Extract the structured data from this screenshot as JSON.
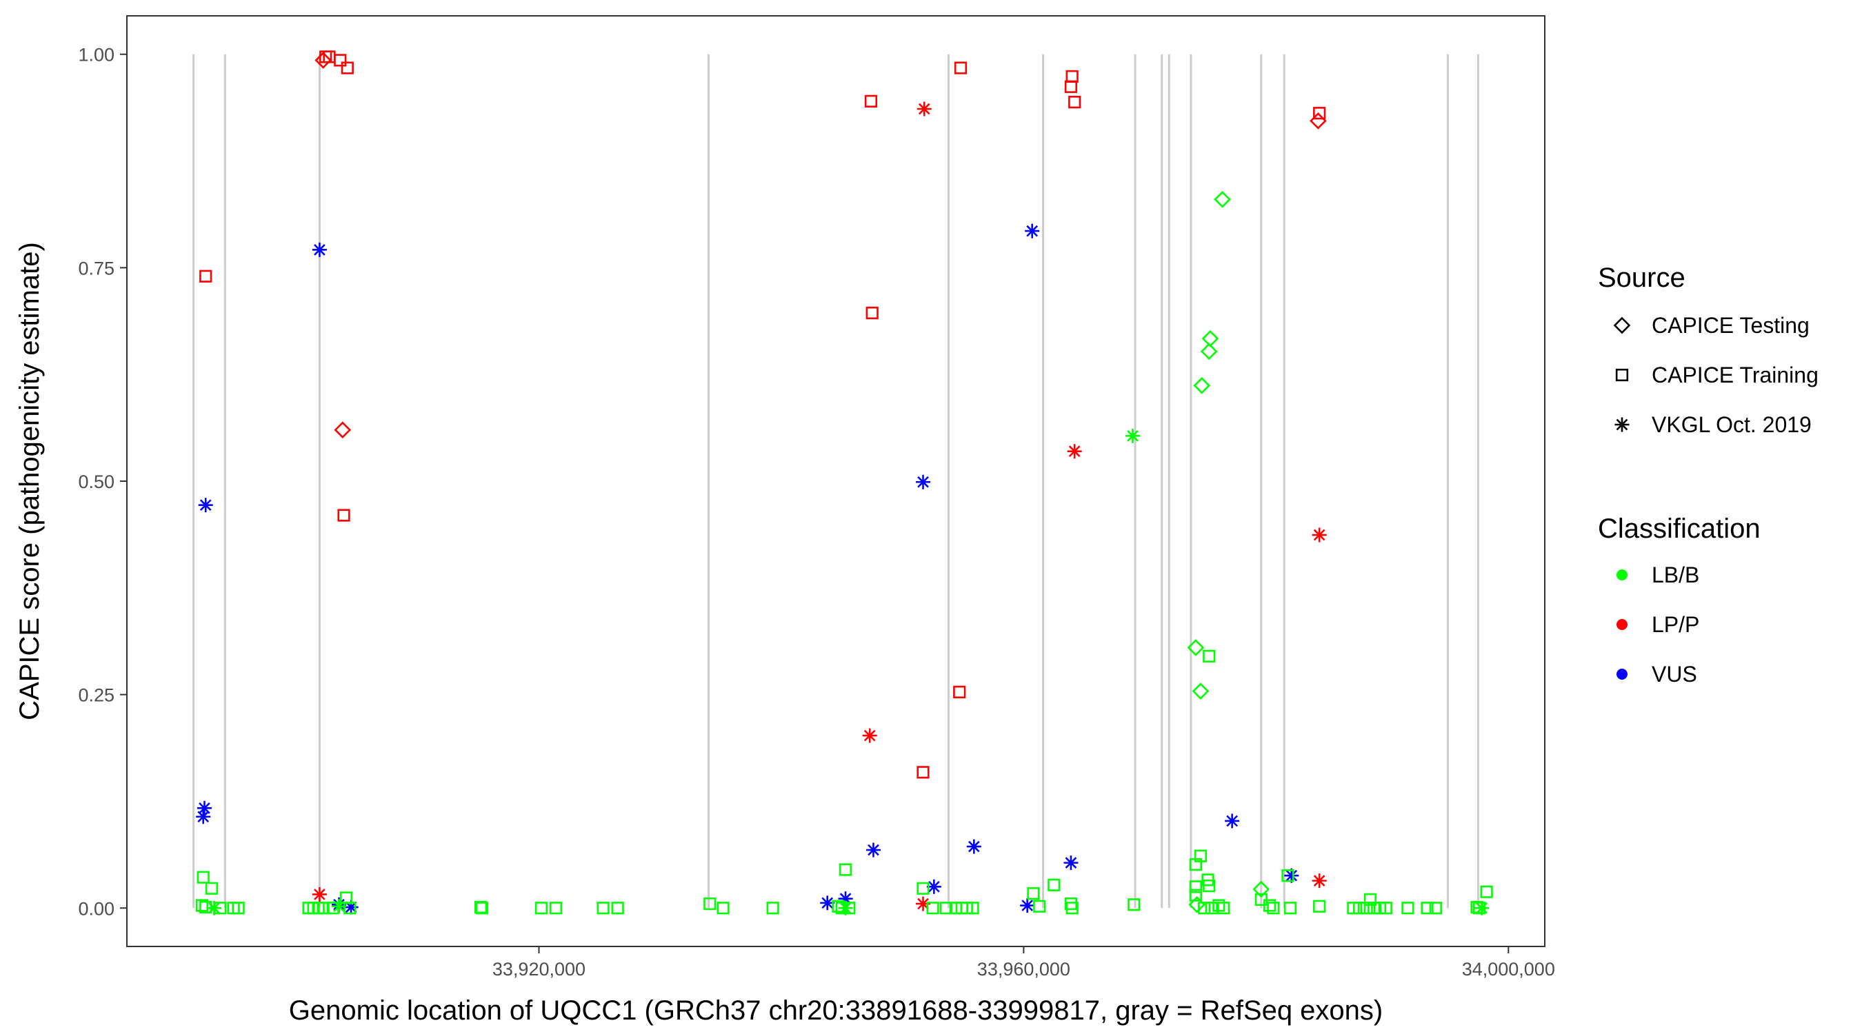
{
  "chart_data": {
    "type": "scatter",
    "xlabel": "Genomic location of UQCC1 (GRCh37 chr20:33891688-33999817, gray = RefSeq exons)",
    "ylabel": "CAPICE score (pathogenicity estimate)",
    "xlim": [
      33886000,
      34003000
    ],
    "ylim": [
      -0.045,
      1.045
    ],
    "x_ticks": [
      {
        "value": 33920000,
        "label": "33,920,000"
      },
      {
        "value": 33960000,
        "label": "33,960,000"
      },
      {
        "value": 34000000,
        "label": "34,000,000"
      }
    ],
    "y_ticks": [
      {
        "value": 0,
        "label": "0.00"
      },
      {
        "value": 0.25,
        "label": "0.25"
      },
      {
        "value": 0.5,
        "label": "0.50"
      },
      {
        "value": 0.75,
        "label": "0.75"
      },
      {
        "value": 1.0,
        "label": "1.00"
      }
    ],
    "grid": false,
    "exon_lines": [
      33891500,
      33894100,
      33901900,
      33934000,
      33953800,
      33961600,
      33969200,
      33971400,
      33972000,
      33973800,
      33979600,
      33981500,
      33995000,
      33997500
    ],
    "legend_placement": "right",
    "source_legend": {
      "title": "Source",
      "entries": [
        {
          "label": "CAPICE Testing",
          "shape": "diamond"
        },
        {
          "label": "CAPICE Training",
          "shape": "square"
        },
        {
          "label": "VKGL Oct. 2019",
          "shape": "asterisk"
        }
      ]
    },
    "class_legend": {
      "title": "Classification",
      "entries": [
        {
          "label": "LB/B",
          "color": "#00ff00"
        },
        {
          "label": "LP/P",
          "color": "#ff0000"
        },
        {
          "label": "VUS",
          "color": "#0000ff"
        }
      ]
    },
    "colors": {
      "LB/B": "#00ff00",
      "LP/P": "#ff0000",
      "VUS": "#0000ff"
    },
    "exon_color": "#cccccc",
    "points": [
      {
        "x": 33902400,
        "y": 0.997,
        "shape": "square",
        "cls": "LP/P"
      },
      {
        "x": 33902700,
        "y": 0.997,
        "shape": "square",
        "cls": "LP/P"
      },
      {
        "x": 33902200,
        "y": 0.993,
        "shape": "diamond",
        "cls": "LP/P"
      },
      {
        "x": 33903600,
        "y": 0.993,
        "shape": "square",
        "cls": "LP/P"
      },
      {
        "x": 33904200,
        "y": 0.984,
        "shape": "square",
        "cls": "LP/P"
      },
      {
        "x": 33892500,
        "y": 0.74,
        "shape": "square",
        "cls": "LP/P"
      },
      {
        "x": 33903800,
        "y": 0.56,
        "shape": "diamond",
        "cls": "LP/P"
      },
      {
        "x": 33903900,
        "y": 0.46,
        "shape": "square",
        "cls": "LP/P"
      },
      {
        "x": 33901900,
        "y": 0.016,
        "shape": "asterisk",
        "cls": "LP/P"
      },
      {
        "x": 33947400,
        "y": 0.945,
        "shape": "square",
        "cls": "LP/P"
      },
      {
        "x": 33947500,
        "y": 0.697,
        "shape": "square",
        "cls": "LP/P"
      },
      {
        "x": 33947300,
        "y": 0.202,
        "shape": "asterisk",
        "cls": "LP/P"
      },
      {
        "x": 33951800,
        "y": 0.936,
        "shape": "asterisk",
        "cls": "LP/P"
      },
      {
        "x": 33954800,
        "y": 0.984,
        "shape": "square",
        "cls": "LP/P"
      },
      {
        "x": 33954700,
        "y": 0.253,
        "shape": "square",
        "cls": "LP/P"
      },
      {
        "x": 33951700,
        "y": 0.159,
        "shape": "square",
        "cls": "LP/P"
      },
      {
        "x": 33951700,
        "y": 0.005,
        "shape": "asterisk",
        "cls": "LP/P"
      },
      {
        "x": 33964000,
        "y": 0.974,
        "shape": "square",
        "cls": "LP/P"
      },
      {
        "x": 33963900,
        "y": 0.962,
        "shape": "square",
        "cls": "LP/P"
      },
      {
        "x": 33964200,
        "y": 0.944,
        "shape": "square",
        "cls": "LP/P"
      },
      {
        "x": 33964200,
        "y": 0.535,
        "shape": "asterisk",
        "cls": "LP/P"
      },
      {
        "x": 33984400,
        "y": 0.931,
        "shape": "square",
        "cls": "LP/P"
      },
      {
        "x": 33984300,
        "y": 0.922,
        "shape": "diamond",
        "cls": "LP/P"
      },
      {
        "x": 33984400,
        "y": 0.437,
        "shape": "asterisk",
        "cls": "LP/P"
      },
      {
        "x": 33984400,
        "y": 0.032,
        "shape": "asterisk",
        "cls": "LP/P"
      },
      {
        "x": 33901900,
        "y": 0.771,
        "shape": "asterisk",
        "cls": "VUS"
      },
      {
        "x": 33892500,
        "y": 0.472,
        "shape": "asterisk",
        "cls": "VUS"
      },
      {
        "x": 33892400,
        "y": 0.117,
        "shape": "asterisk",
        "cls": "VUS"
      },
      {
        "x": 33892300,
        "y": 0.107,
        "shape": "asterisk",
        "cls": "VUS"
      },
      {
        "x": 33903500,
        "y": 0.004,
        "shape": "asterisk",
        "cls": "VUS"
      },
      {
        "x": 33904500,
        "y": 0.001,
        "shape": "asterisk",
        "cls": "VUS"
      },
      {
        "x": 33951700,
        "y": 0.499,
        "shape": "asterisk",
        "cls": "VUS"
      },
      {
        "x": 33947600,
        "y": 0.068,
        "shape": "asterisk",
        "cls": "VUS"
      },
      {
        "x": 33943800,
        "y": 0.006,
        "shape": "asterisk",
        "cls": "VUS"
      },
      {
        "x": 33945300,
        "y": 0.011,
        "shape": "asterisk",
        "cls": "VUS"
      },
      {
        "x": 33952600,
        "y": 0.025,
        "shape": "asterisk",
        "cls": "VUS"
      },
      {
        "x": 33955900,
        "y": 0.072,
        "shape": "asterisk",
        "cls": "VUS"
      },
      {
        "x": 33960700,
        "y": 0.793,
        "shape": "asterisk",
        "cls": "VUS"
      },
      {
        "x": 33963900,
        "y": 0.053,
        "shape": "asterisk",
        "cls": "VUS"
      },
      {
        "x": 33960300,
        "y": 0.003,
        "shape": "asterisk",
        "cls": "VUS"
      },
      {
        "x": 33977200,
        "y": 0.102,
        "shape": "asterisk",
        "cls": "VUS"
      },
      {
        "x": 33982100,
        "y": 0.038,
        "shape": "asterisk",
        "cls": "VUS"
      },
      {
        "x": 33976400,
        "y": 0.83,
        "shape": "diamond",
        "cls": "LB/B"
      },
      {
        "x": 33975400,
        "y": 0.667,
        "shape": "diamond",
        "cls": "LB/B"
      },
      {
        "x": 33975300,
        "y": 0.652,
        "shape": "diamond",
        "cls": "LB/B"
      },
      {
        "x": 33974700,
        "y": 0.612,
        "shape": "diamond",
        "cls": "LB/B"
      },
      {
        "x": 33974200,
        "y": 0.305,
        "shape": "diamond",
        "cls": "LB/B"
      },
      {
        "x": 33975300,
        "y": 0.295,
        "shape": "square",
        "cls": "LB/B"
      },
      {
        "x": 33974600,
        "y": 0.254,
        "shape": "diamond",
        "cls": "LB/B"
      },
      {
        "x": 33969000,
        "y": 0.553,
        "shape": "asterisk",
        "cls": "LB/B"
      },
      {
        "x": 33974600,
        "y": 0.061,
        "shape": "square",
        "cls": "LB/B"
      },
      {
        "x": 33974200,
        "y": 0.051,
        "shape": "square",
        "cls": "LB/B"
      },
      {
        "x": 33975200,
        "y": 0.033,
        "shape": "square",
        "cls": "LB/B"
      },
      {
        "x": 33975300,
        "y": 0.026,
        "shape": "square",
        "cls": "LB/B"
      },
      {
        "x": 33974200,
        "y": 0.025,
        "shape": "square",
        "cls": "LB/B"
      },
      {
        "x": 33974200,
        "y": 0.015,
        "shape": "square",
        "cls": "LB/B"
      },
      {
        "x": 33974300,
        "y": 0.004,
        "shape": "diamond",
        "cls": "LB/B"
      },
      {
        "x": 33974900,
        "y": 0.0,
        "shape": "square",
        "cls": "LB/B"
      },
      {
        "x": 33975500,
        "y": 0.0,
        "shape": "square",
        "cls": "LB/B"
      },
      {
        "x": 33976100,
        "y": 0.003,
        "shape": "square",
        "cls": "LB/B"
      },
      {
        "x": 33976500,
        "y": 0.0,
        "shape": "square",
        "cls": "LB/B"
      },
      {
        "x": 33979600,
        "y": 0.022,
        "shape": "diamond",
        "cls": "LB/B"
      },
      {
        "x": 33979600,
        "y": 0.01,
        "shape": "square",
        "cls": "LB/B"
      },
      {
        "x": 33980300,
        "y": 0.003,
        "shape": "square",
        "cls": "LB/B"
      },
      {
        "x": 33980600,
        "y": 0.0,
        "shape": "square",
        "cls": "LB/B"
      },
      {
        "x": 33981800,
        "y": 0.038,
        "shape": "square",
        "cls": "LB/B"
      },
      {
        "x": 33982000,
        "y": 0.0,
        "shape": "square",
        "cls": "LB/B"
      },
      {
        "x": 33984400,
        "y": 0.002,
        "shape": "square",
        "cls": "LB/B"
      },
      {
        "x": 33987200,
        "y": 0.0,
        "shape": "square",
        "cls": "LB/B"
      },
      {
        "x": 33987700,
        "y": 0.0,
        "shape": "square",
        "cls": "LB/B"
      },
      {
        "x": 33988300,
        "y": 0.0,
        "shape": "square",
        "cls": "LB/B"
      },
      {
        "x": 33988600,
        "y": 0.01,
        "shape": "square",
        "cls": "LB/B"
      },
      {
        "x": 33988900,
        "y": 0.0,
        "shape": "square",
        "cls": "LB/B"
      },
      {
        "x": 33989400,
        "y": 0.0,
        "shape": "square",
        "cls": "LB/B"
      },
      {
        "x": 33989900,
        "y": 0.0,
        "shape": "square",
        "cls": "LB/B"
      },
      {
        "x": 33991700,
        "y": 0.0,
        "shape": "square",
        "cls": "LB/B"
      },
      {
        "x": 33993300,
        "y": 0.0,
        "shape": "square",
        "cls": "LB/B"
      },
      {
        "x": 33994000,
        "y": 0.0,
        "shape": "square",
        "cls": "LB/B"
      },
      {
        "x": 33997400,
        "y": 0.001,
        "shape": "square",
        "cls": "LB/B"
      },
      {
        "x": 33997600,
        "y": 0.0,
        "shape": "square",
        "cls": "LB/B"
      },
      {
        "x": 33997800,
        "y": 0.0,
        "shape": "asterisk",
        "cls": "LB/B"
      },
      {
        "x": 33998200,
        "y": 0.019,
        "shape": "square",
        "cls": "LB/B"
      },
      {
        "x": 33969100,
        "y": 0.004,
        "shape": "square",
        "cls": "LB/B"
      },
      {
        "x": 33960800,
        "y": 0.017,
        "shape": "square",
        "cls": "LB/B"
      },
      {
        "x": 33961300,
        "y": 0.002,
        "shape": "square",
        "cls": "LB/B"
      },
      {
        "x": 33962500,
        "y": 0.027,
        "shape": "square",
        "cls": "LB/B"
      },
      {
        "x": 33963900,
        "y": 0.005,
        "shape": "square",
        "cls": "LB/B"
      },
      {
        "x": 33964000,
        "y": 0.0,
        "shape": "square",
        "cls": "LB/B"
      },
      {
        "x": 33951700,
        "y": 0.023,
        "shape": "square",
        "cls": "LB/B"
      },
      {
        "x": 33952500,
        "y": 0.0,
        "shape": "square",
        "cls": "LB/B"
      },
      {
        "x": 33953600,
        "y": 0.0,
        "shape": "square",
        "cls": "LB/B"
      },
      {
        "x": 33954400,
        "y": 0.0,
        "shape": "square",
        "cls": "LB/B"
      },
      {
        "x": 33954900,
        "y": 0.0,
        "shape": "square",
        "cls": "LB/B"
      },
      {
        "x": 33955300,
        "y": 0.0,
        "shape": "square",
        "cls": "LB/B"
      },
      {
        "x": 33955800,
        "y": 0.0,
        "shape": "square",
        "cls": "LB/B"
      },
      {
        "x": 33945300,
        "y": 0.045,
        "shape": "square",
        "cls": "LB/B"
      },
      {
        "x": 33944700,
        "y": 0.002,
        "shape": "square",
        "cls": "LB/B"
      },
      {
        "x": 33945000,
        "y": 0.0,
        "shape": "square",
        "cls": "LB/B"
      },
      {
        "x": 33945300,
        "y": 0.0,
        "shape": "asterisk",
        "cls": "LB/B"
      },
      {
        "x": 33945600,
        "y": 0.0,
        "shape": "square",
        "cls": "LB/B"
      },
      {
        "x": 33934100,
        "y": 0.005,
        "shape": "square",
        "cls": "LB/B"
      },
      {
        "x": 33935200,
        "y": 0.0,
        "shape": "square",
        "cls": "LB/B"
      },
      {
        "x": 33939300,
        "y": 0.0,
        "shape": "square",
        "cls": "LB/B"
      },
      {
        "x": 33925300,
        "y": 0.0,
        "shape": "square",
        "cls": "LB/B"
      },
      {
        "x": 33926500,
        "y": 0.0,
        "shape": "square",
        "cls": "LB/B"
      },
      {
        "x": 33921400,
        "y": 0.0,
        "shape": "square",
        "cls": "LB/B"
      },
      {
        "x": 33920200,
        "y": 0.0,
        "shape": "square",
        "cls": "LB/B"
      },
      {
        "x": 33915200,
        "y": 0.001,
        "shape": "square",
        "cls": "LB/B"
      },
      {
        "x": 33915300,
        "y": 0.0,
        "shape": "square",
        "cls": "LB/B"
      },
      {
        "x": 33892300,
        "y": 0.036,
        "shape": "square",
        "cls": "LB/B"
      },
      {
        "x": 33893000,
        "y": 0.023,
        "shape": "square",
        "cls": "LB/B"
      },
      {
        "x": 33892200,
        "y": 0.003,
        "shape": "square",
        "cls": "LB/B"
      },
      {
        "x": 33892500,
        "y": 0.001,
        "shape": "square",
        "cls": "LB/B"
      },
      {
        "x": 33893200,
        "y": 0.0,
        "shape": "asterisk",
        "cls": "LB/B"
      },
      {
        "x": 33893700,
        "y": 0.0,
        "shape": "square",
        "cls": "LB/B"
      },
      {
        "x": 33894800,
        "y": 0.0,
        "shape": "square",
        "cls": "LB/B"
      },
      {
        "x": 33895200,
        "y": 0.0,
        "shape": "square",
        "cls": "LB/B"
      },
      {
        "x": 33901000,
        "y": 0.0,
        "shape": "square",
        "cls": "LB/B"
      },
      {
        "x": 33901400,
        "y": 0.0,
        "shape": "square",
        "cls": "LB/B"
      },
      {
        "x": 33901800,
        "y": 0.0,
        "shape": "square",
        "cls": "LB/B"
      },
      {
        "x": 33902200,
        "y": 0.0,
        "shape": "square",
        "cls": "LB/B"
      },
      {
        "x": 33903000,
        "y": 0.0,
        "shape": "square",
        "cls": "LB/B"
      },
      {
        "x": 33904100,
        "y": 0.012,
        "shape": "square",
        "cls": "LB/B"
      },
      {
        "x": 33903500,
        "y": 0.002,
        "shape": "asterisk",
        "cls": "LB/B"
      },
      {
        "x": 33904400,
        "y": 0.0,
        "shape": "square",
        "cls": "LB/B"
      }
    ]
  }
}
